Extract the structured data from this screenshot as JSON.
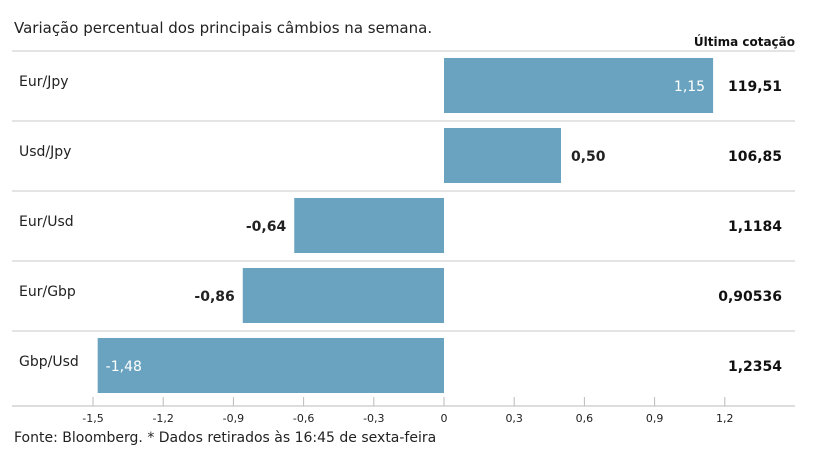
{
  "chart_data": {
    "type": "bar",
    "orientation": "horizontal",
    "title": "Variação percentual dos principais câmbios na semana.",
    "right_column_header": "Última cotação",
    "categories": [
      "Eur/Jpy",
      "Usd/Jpy",
      "Eur/Usd",
      "Eur/Gbp",
      "Gbp/Usd"
    ],
    "values": [
      1.15,
      0.5,
      -0.64,
      -0.86,
      -1.48
    ],
    "value_labels": [
      "1,15",
      "0,50",
      "-0,64",
      "-0,86",
      "-1,48"
    ],
    "last_quote": [
      "119,51",
      "106,85",
      "1,1184",
      "0,90536",
      "1,2354"
    ],
    "xlim": [
      -1.55,
      1.5
    ],
    "x_ticks": [
      -1.5,
      -1.2,
      -0.9,
      -0.6,
      -0.3,
      0,
      0.3,
      0.6,
      0.9,
      1.2
    ],
    "x_tick_labels": [
      "-1,5",
      "-1,2",
      "-0,9",
      "-0,6",
      "-0,3",
      "0",
      "0,3",
      "0,6",
      "0,9",
      "1,2"
    ],
    "bar_color": "#6aa3bf",
    "grid": false
  },
  "footer": "Fonte: Bloomberg.  * Dados retirados às 16:45 de sexta-feira"
}
